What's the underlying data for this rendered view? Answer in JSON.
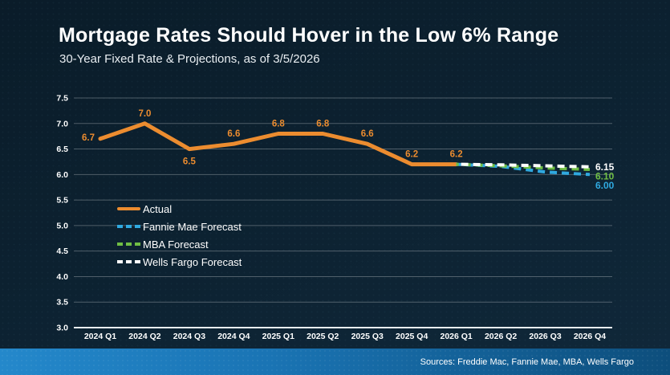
{
  "header": {
    "title": "Mortgage Rates Should Hover in the Low 6% Range",
    "subtitle": "30-Year Fixed Rate & Projections, as of 3/5/2026"
  },
  "footer": {
    "sources": "Sources: Freddie Mac, Fannie Mae, MBA, Wells Fargo"
  },
  "colors": {
    "background": "#0C2130",
    "actual": "#EC8C2F",
    "fannie_mae": "#2FA9E0",
    "mba": "#6FBE44",
    "wells_fargo": "#FFFFFF",
    "gridline": "rgba(255,255,255,0.28)",
    "axis_line": "#E8EDF0",
    "tick_text": "#FFFFFF",
    "footer_left": "#2488CB",
    "footer_right": "#0D4E7C"
  },
  "legend": {
    "items": [
      {
        "id": "actual",
        "label": "Actual",
        "color": "#EC8C2F",
        "style": "solid"
      },
      {
        "id": "fannie-mae",
        "label": "Fannie Mae Forecast",
        "color": "#2FA9E0",
        "style": "dashed"
      },
      {
        "id": "mba",
        "label": "MBA Forecast",
        "color": "#6FBE44",
        "style": "dashed"
      },
      {
        "id": "wells-fargo",
        "label": "Wells Fargo Forecast",
        "color": "#FFFFFF",
        "style": "dashed"
      }
    ]
  },
  "chart_data": {
    "type": "line",
    "title": "Mortgage Rates Should Hover in the Low 6% Range",
    "subtitle": "30-Year Fixed Rate & Projections, as of 3/5/2026",
    "categories": [
      "2024 Q1",
      "2024 Q2",
      "2024 Q3",
      "2024 Q4",
      "2025 Q1",
      "2025 Q2",
      "2025 Q3",
      "2025 Q4",
      "2026 Q1",
      "2026 Q2",
      "2026 Q3",
      "2026 Q4"
    ],
    "ylim": [
      3.0,
      7.5
    ],
    "ytick_step": 0.5,
    "grid": true,
    "legend_position": "inside-left",
    "series": [
      {
        "name": "Actual",
        "id": "actual",
        "style": "solid",
        "color": "#EC8C2F",
        "values": [
          6.7,
          7.0,
          6.5,
          6.6,
          6.8,
          6.8,
          6.6,
          6.2,
          6.2,
          null,
          null,
          null
        ],
        "point_labels": [
          "6.7",
          "7.0",
          "6.5",
          "6.6",
          "6.8",
          "6.8",
          "6.6",
          "6.2",
          "6.2"
        ],
        "point_label_pos": [
          "left",
          "above",
          "below",
          "above",
          "above",
          "above",
          "above",
          "above",
          "above"
        ]
      },
      {
        "name": "Fannie Mae Forecast",
        "id": "fannie-mae",
        "style": "dashed",
        "color": "#2FA9E0",
        "values": [
          null,
          null,
          null,
          null,
          null,
          null,
          null,
          null,
          6.2,
          6.16,
          6.05,
          6.0
        ],
        "end_label": "6.00"
      },
      {
        "name": "MBA Forecast",
        "id": "mba",
        "style": "dashed",
        "color": "#6FBE44",
        "values": [
          null,
          null,
          null,
          null,
          null,
          null,
          null,
          null,
          6.2,
          6.17,
          6.13,
          6.1
        ],
        "end_label": "6.10"
      },
      {
        "name": "Wells Fargo Forecast",
        "id": "wells-fargo",
        "style": "dashed",
        "color": "#FFFFFF",
        "values": [
          null,
          null,
          null,
          null,
          null,
          null,
          null,
          null,
          6.2,
          6.19,
          6.17,
          6.15
        ],
        "end_label": "6.15"
      }
    ]
  }
}
